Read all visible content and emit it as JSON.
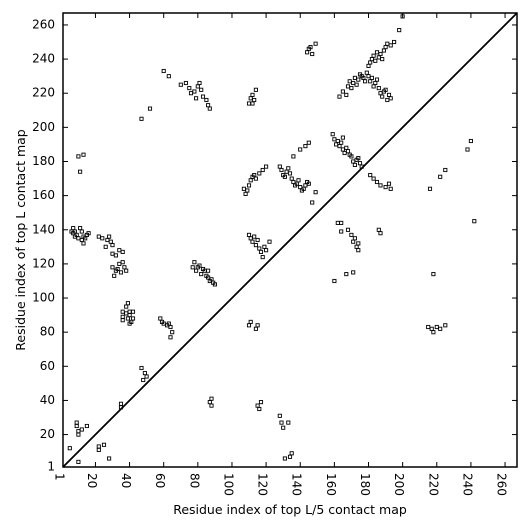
{
  "chart_data": {
    "type": "scatter",
    "title": "",
    "xlabel": "Residue index of top L/5 contact map",
    "ylabel": "Residue index of top L contact map",
    "xlim": [
      1,
      267
    ],
    "ylim": [
      1,
      267
    ],
    "x_ticks": [
      1,
      20,
      40,
      60,
      80,
      100,
      120,
      140,
      160,
      180,
      200,
      220,
      240,
      260
    ],
    "x_tick_labels": [
      "1",
      "20",
      "40",
      "60",
      "80",
      "100",
      "120",
      "140",
      "160",
      "180",
      "200",
      "220",
      "240",
      "260"
    ],
    "y_ticks": [
      1,
      20,
      40,
      60,
      80,
      100,
      120,
      140,
      160,
      180,
      200,
      220,
      240,
      260
    ],
    "y_tick_labels": [
      "1",
      "20",
      "40",
      "60",
      "80",
      "100",
      "120",
      "140",
      "160",
      "180",
      "200",
      "220",
      "240",
      "260"
    ],
    "diagonal": [
      [
        1,
        1
      ],
      [
        267,
        267
      ]
    ],
    "marker": "square",
    "marker_color": "#000000",
    "grid": false,
    "legend": "none",
    "points_below_diagonal": [
      [
        5,
        12
      ],
      [
        9,
        27
      ],
      [
        9,
        25
      ],
      [
        10,
        22
      ],
      [
        10,
        20
      ],
      [
        12,
        23
      ],
      [
        15,
        25
      ],
      [
        10,
        4
      ],
      [
        22,
        13
      ],
      [
        22,
        11
      ],
      [
        25,
        14
      ],
      [
        28,
        6
      ],
      [
        35,
        38
      ],
      [
        35,
        36
      ],
      [
        38,
        95
      ],
      [
        39,
        88
      ],
      [
        40,
        90
      ],
      [
        40,
        85
      ],
      [
        42,
        88
      ],
      [
        42,
        92
      ],
      [
        36,
        92
      ],
      [
        36,
        89
      ],
      [
        36,
        87
      ],
      [
        38,
        91
      ],
      [
        39,
        97
      ],
      [
        40,
        92
      ],
      [
        41,
        86
      ],
      [
        47,
        59
      ],
      [
        49,
        56
      ],
      [
        50,
        54
      ],
      [
        48,
        52
      ],
      [
        58,
        88
      ],
      [
        59,
        86
      ],
      [
        60,
        85
      ],
      [
        62,
        84
      ],
      [
        64,
        83
      ],
      [
        65,
        80
      ],
      [
        64,
        77
      ],
      [
        63,
        85
      ],
      [
        87,
        39
      ],
      [
        88,
        37
      ],
      [
        88,
        41
      ],
      [
        110,
        84
      ],
      [
        111,
        86
      ],
      [
        114,
        82
      ],
      [
        115,
        84
      ],
      [
        115,
        37
      ],
      [
        116,
        35
      ],
      [
        117,
        39
      ],
      [
        128,
        31
      ],
      [
        129,
        27
      ],
      [
        130,
        24
      ],
      [
        131,
        6
      ],
      [
        133,
        27
      ],
      [
        134,
        7
      ],
      [
        135,
        9
      ],
      [
        160,
        110
      ],
      [
        162,
        144
      ],
      [
        164,
        144
      ],
      [
        164,
        139
      ],
      [
        167,
        114
      ],
      [
        168,
        140
      ],
      [
        170,
        137
      ],
      [
        171,
        115
      ],
      [
        172,
        135
      ],
      [
        171,
        133
      ],
      [
        173,
        130
      ],
      [
        174,
        132
      ],
      [
        174,
        128
      ],
      [
        186,
        140
      ],
      [
        187,
        138
      ],
      [
        215,
        83
      ],
      [
        217,
        82
      ],
      [
        218,
        80
      ],
      [
        218,
        114
      ],
      [
        220,
        83
      ],
      [
        222,
        82
      ],
      [
        225,
        84
      ],
      [
        242,
        145
      ]
    ],
    "points_above_diagonal": [
      [
        10,
        183
      ],
      [
        11,
        174
      ],
      [
        13,
        184
      ],
      [
        6,
        139
      ],
      [
        7,
        141
      ],
      [
        7,
        138
      ],
      [
        8,
        139
      ],
      [
        8,
        136
      ],
      [
        9,
        137
      ],
      [
        10,
        135
      ],
      [
        11,
        141
      ],
      [
        12,
        139
      ],
      [
        13,
        136
      ],
      [
        15,
        137
      ],
      [
        16,
        138
      ],
      [
        14,
        135
      ],
      [
        13,
        132
      ],
      [
        12,
        134
      ],
      [
        22,
        136
      ],
      [
        24,
        135
      ],
      [
        26,
        130
      ],
      [
        27,
        134
      ],
      [
        28,
        136
      ],
      [
        29,
        133
      ],
      [
        30,
        131
      ],
      [
        30,
        118
      ],
      [
        31,
        113
      ],
      [
        32,
        116
      ],
      [
        33,
        117
      ],
      [
        34,
        120
      ],
      [
        35,
        115
      ],
      [
        36,
        121
      ],
      [
        37,
        118
      ],
      [
        38,
        116
      ],
      [
        34,
        128
      ],
      [
        36,
        127
      ],
      [
        32,
        125
      ],
      [
        30,
        126
      ],
      [
        47,
        205
      ],
      [
        52,
        211
      ],
      [
        60,
        233
      ],
      [
        63,
        230
      ],
      [
        70,
        225
      ],
      [
        73,
        226
      ],
      [
        75,
        223
      ],
      [
        76,
        220
      ],
      [
        78,
        221
      ],
      [
        79,
        217
      ],
      [
        80,
        224
      ],
      [
        81,
        226
      ],
      [
        82,
        222
      ],
      [
        83,
        218
      ],
      [
        85,
        216
      ],
      [
        86,
        213
      ],
      [
        87,
        211
      ],
      [
        77,
        118
      ],
      [
        78,
        121
      ],
      [
        79,
        116
      ],
      [
        80,
        118
      ],
      [
        81,
        119
      ],
      [
        82,
        114
      ],
      [
        83,
        117
      ],
      [
        84,
        116
      ],
      [
        85,
        113
      ],
      [
        86,
        112
      ],
      [
        87,
        110
      ],
      [
        88,
        111
      ],
      [
        89,
        109
      ],
      [
        90,
        108
      ],
      [
        86,
        116
      ],
      [
        110,
        214
      ],
      [
        111,
        217
      ],
      [
        112,
        219
      ],
      [
        113,
        216
      ],
      [
        114,
        222
      ],
      [
        112,
        214
      ],
      [
        109,
        163
      ],
      [
        110,
        166
      ],
      [
        111,
        169
      ],
      [
        112,
        171
      ],
      [
        113,
        172
      ],
      [
        114,
        170
      ],
      [
        116,
        173
      ],
      [
        118,
        175
      ],
      [
        120,
        177
      ],
      [
        108,
        161
      ],
      [
        107,
        164
      ],
      [
        110,
        137
      ],
      [
        111,
        135
      ],
      [
        112,
        133
      ],
      [
        113,
        136
      ],
      [
        114,
        131
      ],
      [
        116,
        129
      ],
      [
        117,
        127
      ],
      [
        118,
        124
      ],
      [
        119,
        130
      ],
      [
        120,
        128
      ],
      [
        122,
        133
      ],
      [
        115,
        134
      ],
      [
        128,
        177
      ],
      [
        129,
        175
      ],
      [
        130,
        172
      ],
      [
        131,
        171
      ],
      [
        132,
        174
      ],
      [
        133,
        176
      ],
      [
        134,
        173
      ],
      [
        135,
        170
      ],
      [
        136,
        168
      ],
      [
        137,
        166
      ],
      [
        138,
        167
      ],
      [
        139,
        169
      ],
      [
        140,
        165
      ],
      [
        141,
        163
      ],
      [
        142,
        164
      ],
      [
        143,
        166
      ],
      [
        144,
        168
      ],
      [
        145,
        167
      ],
      [
        136,
        183
      ],
      [
        140,
        187
      ],
      [
        143,
        189
      ],
      [
        145,
        191
      ],
      [
        147,
        156
      ],
      [
        149,
        162
      ],
      [
        144,
        244
      ],
      [
        145,
        246
      ],
      [
        146,
        247
      ],
      [
        147,
        243
      ],
      [
        149,
        249
      ],
      [
        159,
        196
      ],
      [
        160,
        193
      ],
      [
        161,
        190
      ],
      [
        162,
        192
      ],
      [
        163,
        189
      ],
      [
        164,
        191
      ],
      [
        165,
        187
      ],
      [
        166,
        185
      ],
      [
        167,
        188
      ],
      [
        168,
        186
      ],
      [
        169,
        184
      ],
      [
        170,
        183
      ],
      [
        171,
        180
      ],
      [
        172,
        178
      ],
      [
        173,
        181
      ],
      [
        174,
        182
      ],
      [
        175,
        179
      ],
      [
        176,
        177
      ],
      [
        165,
        194
      ],
      [
        163,
        218
      ],
      [
        165,
        221
      ],
      [
        167,
        219
      ],
      [
        168,
        224
      ],
      [
        169,
        227
      ],
      [
        170,
        223
      ],
      [
        171,
        226
      ],
      [
        172,
        229
      ],
      [
        173,
        225
      ],
      [
        174,
        228
      ],
      [
        175,
        231
      ],
      [
        176,
        230
      ],
      [
        177,
        229
      ],
      [
        178,
        227
      ],
      [
        179,
        232
      ],
      [
        180,
        230
      ],
      [
        181,
        227
      ],
      [
        182,
        229
      ],
      [
        183,
        224
      ],
      [
        184,
        226
      ],
      [
        185,
        228
      ],
      [
        186,
        223
      ],
      [
        187,
        220
      ],
      [
        188,
        218
      ],
      [
        189,
        221
      ],
      [
        190,
        222
      ],
      [
        191,
        216
      ],
      [
        192,
        219
      ],
      [
        193,
        217
      ],
      [
        180,
        236
      ],
      [
        181,
        238
      ],
      [
        182,
        240
      ],
      [
        183,
        242
      ],
      [
        184,
        239
      ],
      [
        185,
        244
      ],
      [
        186,
        241
      ],
      [
        187,
        243
      ],
      [
        188,
        240
      ],
      [
        189,
        245
      ],
      [
        190,
        247
      ],
      [
        191,
        249
      ],
      [
        193,
        248
      ],
      [
        195,
        250
      ],
      [
        198,
        257
      ],
      [
        200,
        265
      ],
      [
        181,
        172
      ],
      [
        183,
        170
      ],
      [
        185,
        168
      ],
      [
        187,
        166
      ],
      [
        190,
        165
      ],
      [
        192,
        167
      ],
      [
        193,
        164
      ],
      [
        216,
        164
      ],
      [
        222,
        171
      ],
      [
        225,
        175
      ],
      [
        238,
        187
      ],
      [
        240,
        192
      ]
    ]
  }
}
